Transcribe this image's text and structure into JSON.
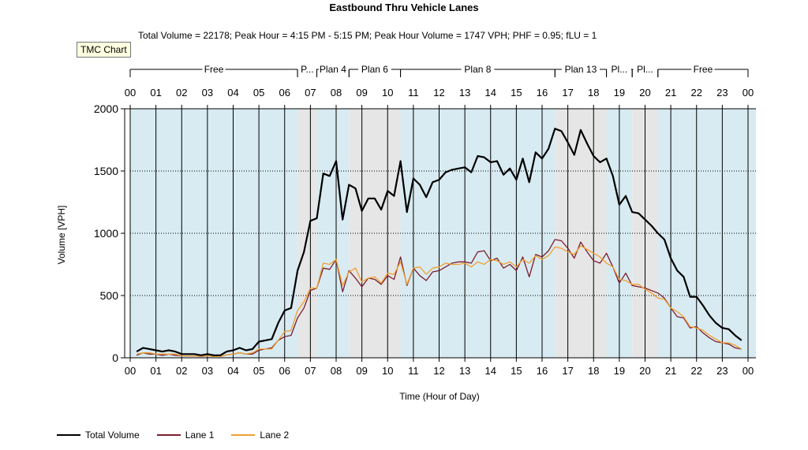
{
  "window": {
    "tooltip": "TMC Chart"
  },
  "chart_data": {
    "type": "line",
    "title": "Eastbound Thru Vehicle Lanes",
    "subtitle": "Total Volume = 22178; Peak Hour = 4:15 PM - 5:15 PM; Peak Hour Volume = 1747 VPH; PHF = 0.95; fLU = 1",
    "xlabel": "Time (Hour of Day)",
    "ylabel": "Volume [VPH]",
    "xlim": [
      0,
      24
    ],
    "ylim": [
      0,
      2000
    ],
    "yticks": [
      0,
      500,
      1000,
      1500,
      2000
    ],
    "xticklabels": [
      "00",
      "01",
      "02",
      "03",
      "04",
      "05",
      "06",
      "07",
      "08",
      "09",
      "10",
      "11",
      "12",
      "13",
      "14",
      "15",
      "16",
      "17",
      "18",
      "19",
      "20",
      "21",
      "22",
      "23",
      "00"
    ],
    "grid": true,
    "legend_position": "bottom-left",
    "plans": [
      {
        "label": "Free",
        "start": 0.0,
        "end": 6.5
      },
      {
        "label": "P...",
        "start": 6.5,
        "end": 7.25
      },
      {
        "label": "Plan 4",
        "start": 7.25,
        "end": 8.5
      },
      {
        "label": "Plan 6",
        "start": 8.5,
        "end": 10.5
      },
      {
        "label": "Plan 8",
        "start": 10.5,
        "end": 16.5
      },
      {
        "label": "Plan 13",
        "start": 16.5,
        "end": 18.5
      },
      {
        "label": "Pl...",
        "start": 18.5,
        "end": 19.5
      },
      {
        "label": "Pl...",
        "start": 19.5,
        "end": 20.5
      },
      {
        "label": "Free",
        "start": 20.5,
        "end": 24.0
      }
    ],
    "x": [
      0.25,
      0.5,
      0.75,
      1.0,
      1.25,
      1.5,
      1.75,
      2.0,
      2.25,
      2.5,
      2.75,
      3.0,
      3.25,
      3.5,
      3.75,
      4.0,
      4.25,
      4.5,
      4.75,
      5.0,
      5.25,
      5.5,
      5.75,
      6.0,
      6.25,
      6.5,
      6.75,
      7.0,
      7.25,
      7.5,
      7.75,
      8.0,
      8.25,
      8.5,
      8.75,
      9.0,
      9.25,
      9.5,
      9.75,
      10.0,
      10.25,
      10.5,
      10.75,
      11.0,
      11.25,
      11.5,
      11.75,
      12.0,
      12.25,
      12.5,
      12.75,
      13.0,
      13.25,
      13.5,
      13.75,
      14.0,
      14.25,
      14.5,
      14.75,
      15.0,
      15.25,
      15.5,
      15.75,
      16.0,
      16.25,
      16.5,
      16.75,
      17.0,
      17.25,
      17.5,
      17.75,
      18.0,
      18.25,
      18.5,
      18.75,
      19.0,
      19.25,
      19.5,
      19.75,
      20.0,
      20.25,
      20.5,
      20.75,
      21.0,
      21.25,
      21.5,
      21.75,
      22.0,
      22.25,
      22.5,
      22.75,
      23.0,
      23.25,
      23.5,
      23.75
    ],
    "series": [
      {
        "name": "Total Volume",
        "color": "#000000",
        "values": [
          50,
          80,
          70,
          60,
          50,
          60,
          50,
          30,
          30,
          30,
          20,
          30,
          20,
          20,
          50,
          60,
          80,
          60,
          70,
          130,
          140,
          150,
          280,
          380,
          400,
          700,
          850,
          1100,
          1120,
          1480,
          1460,
          1580,
          1110,
          1390,
          1360,
          1180,
          1280,
          1280,
          1190,
          1340,
          1300,
          1580,
          1170,
          1440,
          1390,
          1290,
          1410,
          1430,
          1490,
          1510,
          1520,
          1530,
          1490,
          1620,
          1610,
          1570,
          1580,
          1470,
          1520,
          1430,
          1600,
          1410,
          1650,
          1600,
          1680,
          1840,
          1820,
          1730,
          1630,
          1830,
          1720,
          1620,
          1570,
          1600,
          1460,
          1230,
          1300,
          1170,
          1160,
          1110,
          1060,
          1000,
          950,
          800,
          700,
          650,
          490,
          490,
          420,
          340,
          280,
          240,
          230,
          180,
          140
        ]
      },
      {
        "name": "Lane 1",
        "color": "#7b1d2e",
        "values": [
          20,
          40,
          30,
          30,
          20,
          30,
          20,
          15,
          15,
          15,
          10,
          15,
          10,
          10,
          25,
          30,
          40,
          30,
          30,
          60,
          70,
          80,
          140,
          170,
          180,
          320,
          400,
          540,
          560,
          720,
          710,
          790,
          530,
          700,
          640,
          570,
          640,
          630,
          590,
          660,
          630,
          810,
          580,
          720,
          660,
          620,
          690,
          700,
          730,
          760,
          770,
          770,
          760,
          850,
          860,
          780,
          800,
          720,
          750,
          700,
          810,
          650,
          830,
          810,
          860,
          950,
          940,
          880,
          800,
          930,
          850,
          780,
          760,
          840,
          730,
          600,
          680,
          580,
          570,
          560,
          540,
          520,
          480,
          400,
          330,
          320,
          240,
          250,
          200,
          160,
          130,
          120,
          110,
          80,
          70
        ]
      },
      {
        "name": "Lane 2",
        "color": "#f0a030",
        "values": [
          30,
          40,
          40,
          30,
          30,
          30,
          30,
          15,
          15,
          15,
          10,
          15,
          10,
          10,
          25,
          30,
          40,
          30,
          40,
          70,
          70,
          70,
          140,
          210,
          220,
          380,
          450,
          560,
          560,
          760,
          750,
          790,
          580,
          690,
          720,
          610,
          640,
          650,
          600,
          680,
          670,
          770,
          590,
          720,
          730,
          670,
          720,
          730,
          760,
          750,
          750,
          760,
          730,
          770,
          750,
          790,
          780,
          750,
          770,
          730,
          790,
          760,
          820,
          790,
          820,
          890,
          880,
          850,
          830,
          900,
          870,
          840,
          810,
          760,
          730,
          630,
          620,
          590,
          590,
          550,
          520,
          480,
          470,
          400,
          370,
          330,
          250,
          240,
          220,
          180,
          150,
          120,
          120,
          100,
          70
        ]
      }
    ]
  }
}
